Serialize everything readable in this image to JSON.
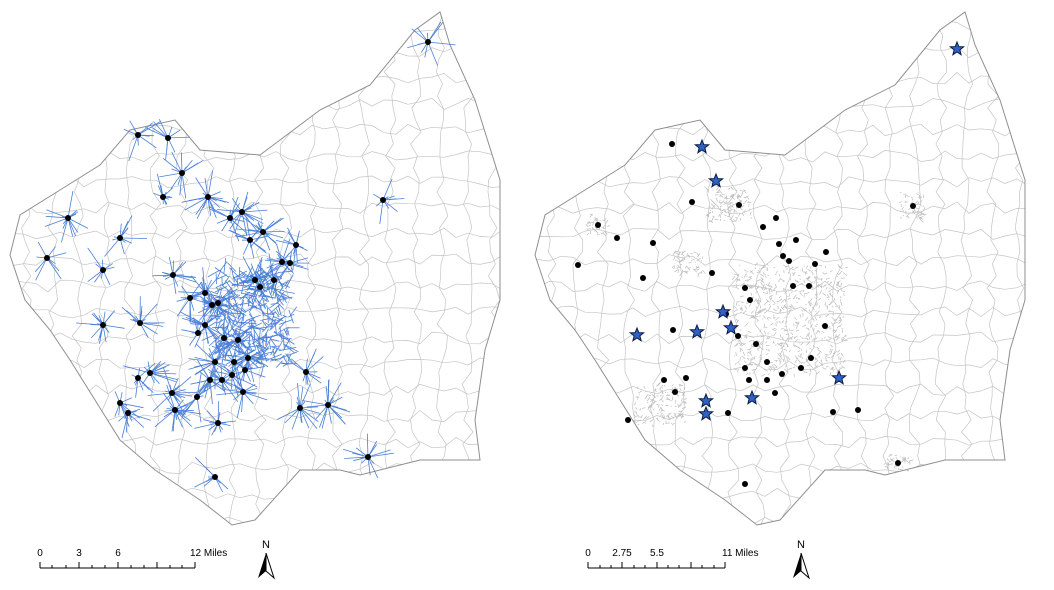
{
  "colors": {
    "boundary": "#9a9a9a",
    "route_lines": "#4a7fd6",
    "network_gray": "#bcbcbc",
    "facility_dot": "#000000",
    "star_fill": "#2f62c4",
    "star_stroke": "#0b1c44"
  },
  "icons": {
    "facility": "black-dot",
    "new_site": "blue-star",
    "north": "north-arrow"
  },
  "panels": [
    {
      "id": "left",
      "scale_bar": {
        "ticks": [
          "0",
          "3",
          "6",
          "12 Miles"
        ]
      },
      "north_label": "N"
    },
    {
      "id": "right",
      "scale_bar": {
        "ticks": [
          "0",
          "2.75",
          "5.5",
          "11 Miles"
        ]
      },
      "north_label": "N"
    }
  ]
}
